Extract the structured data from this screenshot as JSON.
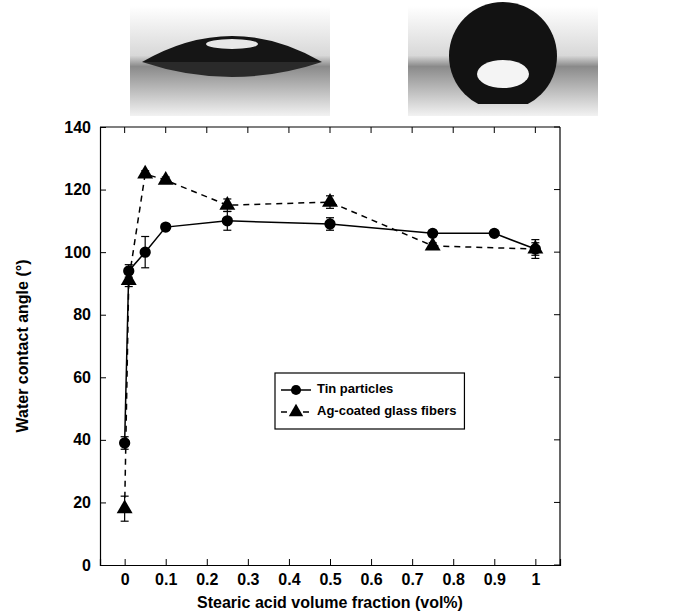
{
  "chart_data": {
    "type": "line",
    "x_label": "Stearic acid volume fraction (vol%)",
    "y_label": "Water contact angle (°)",
    "xlim": [
      -0.06,
      1.06
    ],
    "xticks": [
      0,
      0.1,
      0.2,
      0.3,
      0.4,
      0.5,
      0.6,
      0.7,
      0.8,
      0.9,
      1
    ],
    "ylim": [
      0,
      140
    ],
    "yticks": [
      0,
      20,
      40,
      60,
      80,
      100,
      120,
      140
    ],
    "grid": false,
    "legend": "center",
    "series": [
      {
        "name": "Tin particles",
        "color": "#000000",
        "marker": "circle",
        "line_style": "solid",
        "x": [
          0,
          0.01,
          0.05,
          0.1,
          0.25,
          0.5,
          0.75,
          0.9,
          1
        ],
        "values": [
          39,
          94,
          100,
          108,
          110,
          109,
          106,
          106,
          101
        ],
        "errors": [
          2,
          2,
          5,
          1,
          3,
          2,
          1,
          1,
          3
        ]
      },
      {
        "name": "Ag-coated glass fibers",
        "color": "#000000",
        "marker": "triangle",
        "line_style": "dashed",
        "x": [
          0,
          0.01,
          0.05,
          0.1,
          0.25,
          0.5,
          0.75,
          1
        ],
        "values": [
          18,
          91,
          125,
          123,
          115,
          116,
          102,
          101
        ],
        "errors": [
          4,
          2,
          1,
          1,
          2,
          2,
          1,
          2
        ]
      }
    ]
  }
}
